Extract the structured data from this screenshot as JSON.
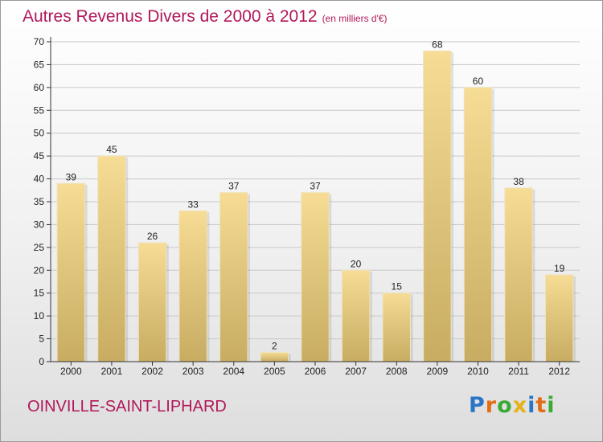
{
  "chart_data": {
    "type": "bar",
    "title": "Autres Revenus Divers de 2000 à 2012",
    "subtitle": "(en milliers d'€)",
    "xlabel": "",
    "ylabel": "",
    "categories": [
      "2000",
      "2001",
      "2002",
      "2003",
      "2004",
      "2005",
      "2006",
      "2007",
      "2008",
      "2009",
      "2010",
      "2011",
      "2012"
    ],
    "values": [
      39,
      45,
      26,
      33,
      37,
      2,
      37,
      20,
      15,
      68,
      60,
      38,
      19
    ],
    "data_labels": [
      "39",
      "45",
      "26",
      "33",
      "37",
      "2",
      "37",
      "20",
      "15",
      "68",
      "60",
      "38",
      "19"
    ],
    "ylim": [
      0,
      70
    ],
    "yticks": [
      0,
      5,
      10,
      15,
      20,
      25,
      30,
      35,
      40,
      45,
      50,
      55,
      60,
      65,
      70
    ],
    "ytick_labels": [
      "0",
      "5",
      "10",
      "15",
      "20",
      "25",
      "30",
      "35",
      "40",
      "45",
      "50",
      "55",
      "60",
      "65",
      "70"
    ],
    "grid": "horizontal",
    "legend": "none",
    "colors": {
      "bar_light": "#f6dc94",
      "bar_dark": "#c7ac62",
      "axis": "#333333",
      "grid": "#c8c8c8",
      "accent": "#b0185a"
    }
  },
  "footer": {
    "town": "OINVILLE-SAINT-LIPHARD",
    "logo_letters": [
      {
        "char": "P",
        "color": "#2a76c6"
      },
      {
        "char": "r",
        "color": "#e36d17"
      },
      {
        "char": "o",
        "color": "#3aaa35"
      },
      {
        "char": "x",
        "color": "#e3b317"
      },
      {
        "char": "i",
        "color": "#2a76c6"
      },
      {
        "char": "t",
        "color": "#e36d17"
      },
      {
        "char": "i",
        "color": "#3aaa35"
      }
    ]
  }
}
